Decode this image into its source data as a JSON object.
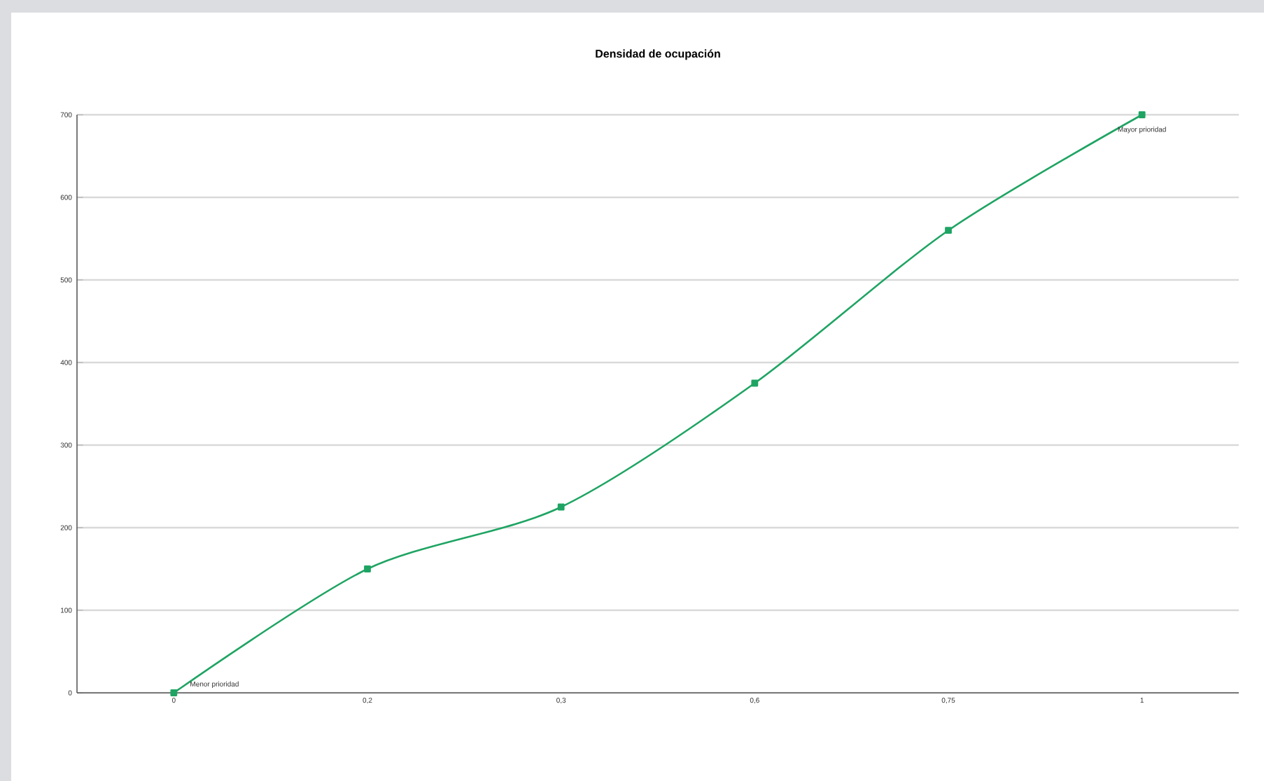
{
  "chart_data": {
    "type": "line",
    "title": "Densidad de ocupación",
    "categories": [
      "0",
      "0,2",
      "0,3",
      "0,6",
      "0,75",
      "1"
    ],
    "series": [
      {
        "color": "#1fa463",
        "values": [
          0,
          150,
          225,
          375,
          560,
          700
        ]
      }
    ],
    "ylim": [
      0,
      700
    ],
    "yticks": [
      0,
      100,
      200,
      300,
      400,
      500,
      600,
      700
    ],
    "grid": "y",
    "marker": "square",
    "line_style": "solid",
    "annotations": [
      {
        "text": "Menor prioridad",
        "x": "0",
        "y": 0
      },
      {
        "text": "Mayor prioridad",
        "x": "1",
        "y": 700
      }
    ]
  }
}
